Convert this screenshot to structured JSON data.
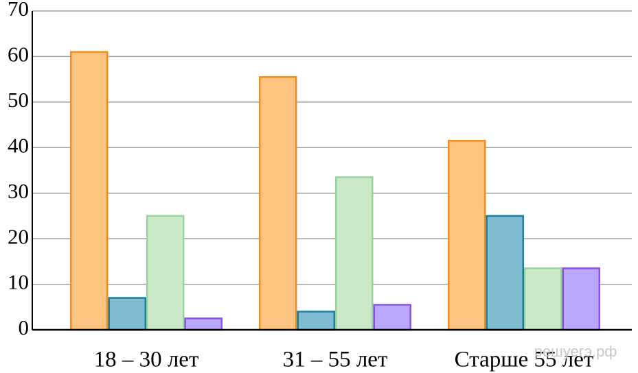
{
  "chart_data": {
    "type": "bar",
    "categories": [
      "18 – 30 лет",
      "31 – 55 лет",
      "Старше 55 лет"
    ],
    "series": [
      {
        "color": "#ffc580",
        "edge_color": "#f28c1c",
        "values": [
          61,
          55.5,
          41.5
        ]
      },
      {
        "color": "#7fbcd2",
        "edge_color": "#1a7fa0",
        "values": [
          7,
          4,
          25
        ]
      },
      {
        "color": "#cbe9c9",
        "edge_color": "#98d498",
        "values": [
          25,
          33.5,
          13.5
        ]
      },
      {
        "color": "#bba7ff",
        "edge_color": "#8a55e6",
        "values": [
          2.5,
          5.5,
          13.5
        ]
      }
    ],
    "ylim": [
      0,
      70
    ],
    "yticks": [
      0,
      10,
      20,
      30,
      40,
      50,
      60,
      70
    ],
    "grid": true,
    "watermark": "решуегэ.рф"
  }
}
